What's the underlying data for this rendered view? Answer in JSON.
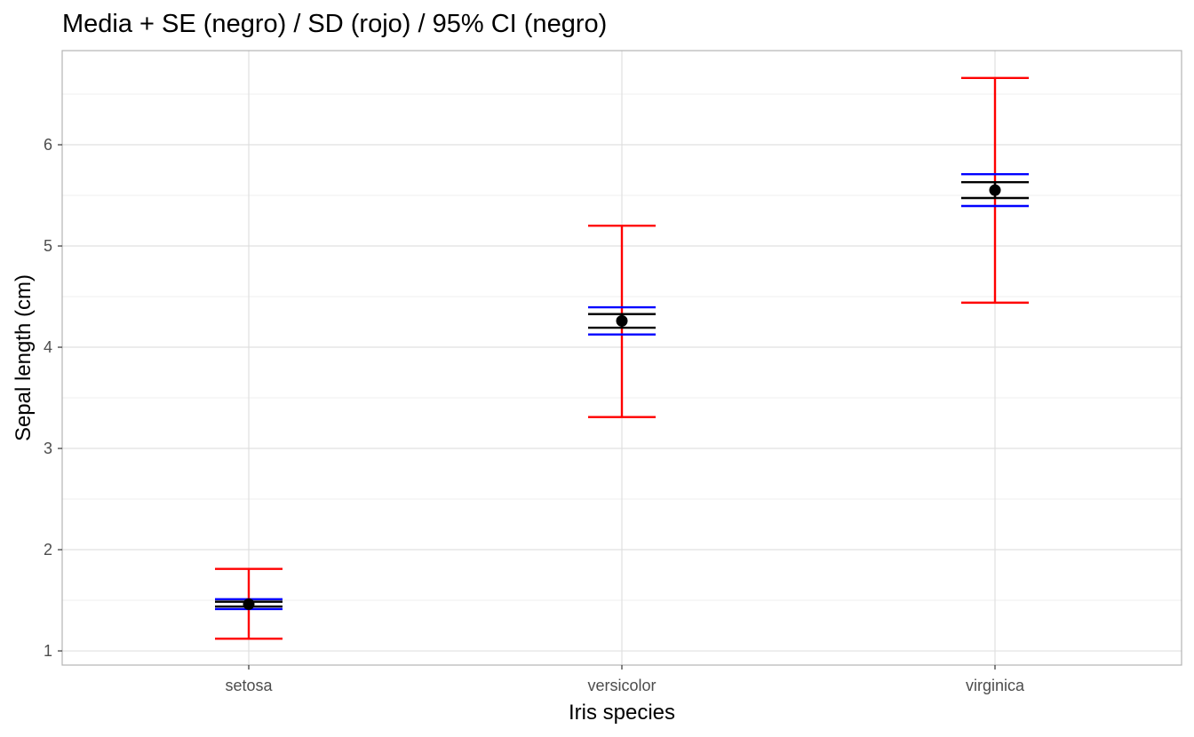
{
  "chart_data": {
    "type": "errorbar",
    "title": "Media + SE (negro) / SD (rojo) / 95% CI (negro)",
    "xlabel": "Iris species",
    "ylabel": "Sepal length (cm)",
    "categories": [
      "setosa",
      "versicolor",
      "virginica"
    ],
    "ylim": [
      0.86,
      6.93
    ],
    "yticks": [
      1,
      2,
      3,
      4,
      5,
      6
    ],
    "grid": true,
    "mean": [
      1.462,
      4.26,
      5.552
    ],
    "se": {
      "lower": [
        1.438,
        4.193,
        5.474
      ],
      "upper": [
        1.486,
        4.327,
        5.63
      ]
    },
    "sd": {
      "lower": [
        1.12,
        3.31,
        4.44
      ],
      "upper": [
        1.81,
        5.2,
        6.66
      ]
    },
    "ci95": {
      "lower": [
        1.413,
        4.126,
        5.395
      ],
      "upper": [
        1.511,
        4.394,
        5.709
      ]
    },
    "colors": {
      "mean": "#000000",
      "se": "#000000",
      "sd": "#ff0000",
      "ci95": "#0000ff",
      "grid_major": "#e0e0e0",
      "grid_minor": "#efefef",
      "panel_border": "#b3b3b3"
    }
  }
}
